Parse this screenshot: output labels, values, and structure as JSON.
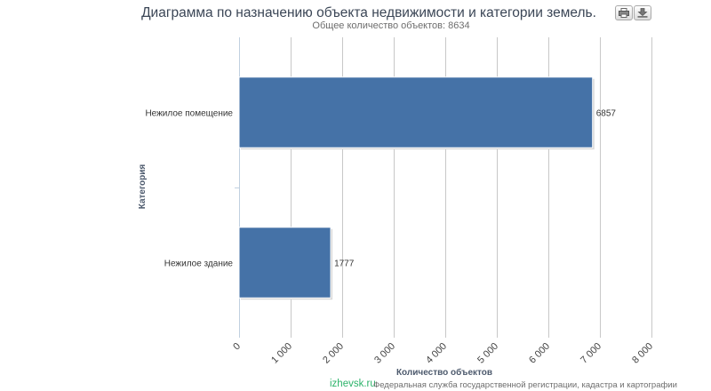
{
  "chart_data": {
    "type": "bar",
    "orientation": "horizontal",
    "title": "Диаграмма по назначению объекта недвижимости и категории земель.",
    "subtitle": "Общее количество объектов: 8634",
    "categories": [
      "Нежилое помещение",
      "Нежилое здание"
    ],
    "values": [
      6857,
      1777
    ],
    "data_labels": [
      "6857",
      "1777"
    ],
    "xlabel": "Количество объектов",
    "ylabel": "Категория",
    "xlim": [
      0,
      8000
    ],
    "xticks": [
      0,
      1000,
      2000,
      3000,
      4000,
      5000,
      6000,
      7000,
      8000
    ],
    "xtick_labels": [
      "0",
      "1 000",
      "2 000",
      "3 000",
      "4 000",
      "5 000",
      "6 000",
      "7 000",
      "8 000"
    ],
    "grid": true,
    "legend": "none",
    "bar_color": "#4572a7"
  },
  "toolbar": {
    "print_icon": "printer-icon",
    "download_icon": "download-icon"
  },
  "credits": "Федеральная служба государственной регистрации, кадастра и картографии",
  "watermark": "izhevsk.ru"
}
